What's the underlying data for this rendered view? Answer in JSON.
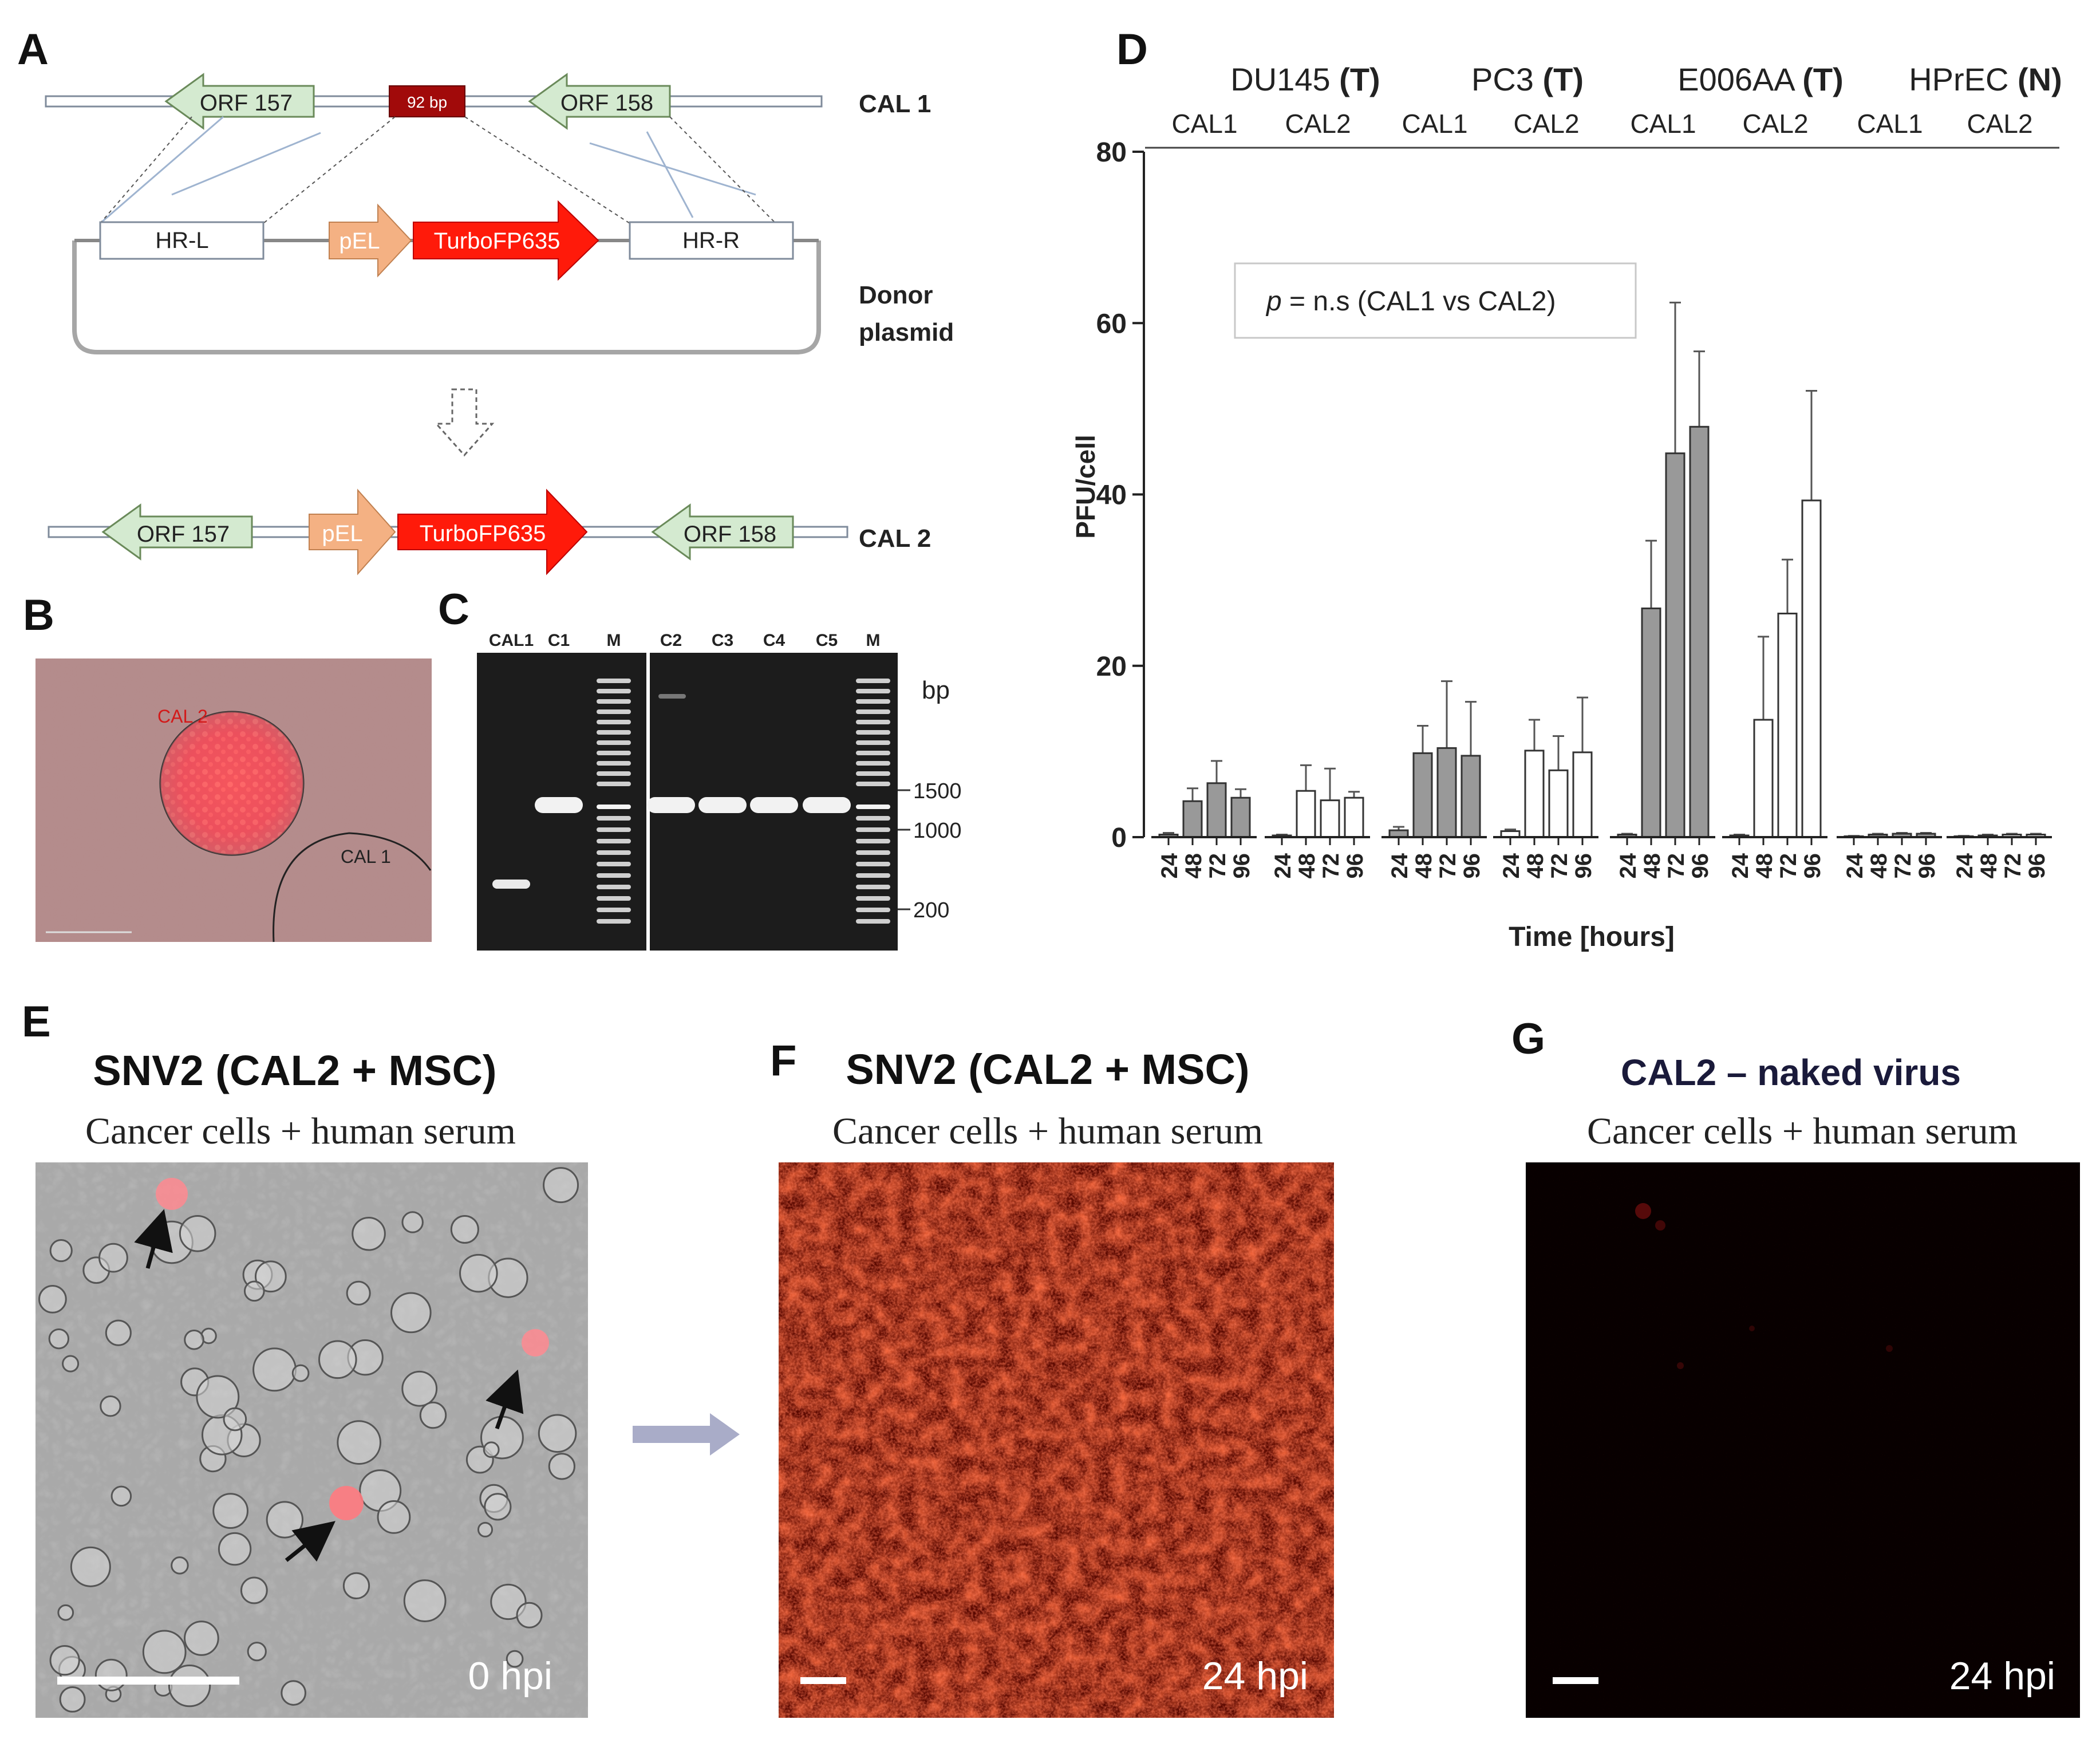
{
  "panels": {
    "A": {
      "letter": "A",
      "top_construct_label": "CAL 1",
      "bottom_construct_label": "CAL 2",
      "orf157": "ORF 157",
      "orf158": "ORF 158",
      "insert_92bp": "92 bp",
      "hr_left": "HR-L",
      "hr_right": "HR-R",
      "promoter": "pEL",
      "reporter": "TurboFP635",
      "donor_label_line1": "Donor",
      "donor_label_line2": "plasmid",
      "colors": {
        "orf_fill": "#d4ead0",
        "promoter_fill": "#f4b183",
        "reporter_fill": "#ff1a0a",
        "insert_fill": "#a10a0a"
      }
    },
    "B": {
      "letter": "B",
      "label_cal2": "CAL 2",
      "label_cal1": "CAL 1"
    },
    "C": {
      "letter": "C",
      "lane_labels": [
        "CAL1",
        "C1",
        "M",
        "C2",
        "C3",
        "C4",
        "C5",
        "M"
      ],
      "bp_label": "bp",
      "marker_labels": [
        "1500",
        "1000",
        "200"
      ]
    },
    "D": {
      "letter": "D",
      "groups": [
        {
          "name": "DU145",
          "tag": "(T)",
          "subs": [
            "CAL1",
            "CAL2"
          ]
        },
        {
          "name": "PC3",
          "tag": "(T)",
          "subs": [
            "CAL1",
            "CAL2"
          ]
        },
        {
          "name": "E006AA",
          "tag": "(T)",
          "subs": [
            "CAL1",
            "CAL2"
          ]
        },
        {
          "name": "HPrEC",
          "tag": "(N)",
          "subs": [
            "CAL1",
            "CAL2"
          ]
        }
      ],
      "stats_prefix": "p",
      "stats_rest": " = n.s (CAL1 vs CAL2)"
    },
    "E": {
      "letter": "E",
      "title": "SNV2 (CAL2 + MSC)",
      "subtitle": "Cancer cells + human serum",
      "timepoint": "0 hpi"
    },
    "F": {
      "letter": "F",
      "title": "SNV2 (CAL2 + MSC)",
      "subtitle": "Cancer cells + human serum",
      "timepoint": "24 hpi"
    },
    "G": {
      "letter": "G",
      "title": "CAL2 – naked virus",
      "subtitle": "Cancer cells + human serum",
      "timepoint": "24 hpi"
    }
  },
  "chart_data": {
    "type": "bar",
    "ylabel": "PFU/cell",
    "xlabel": "Time [hours]",
    "ylim": [
      0,
      80
    ],
    "yticks": [
      0,
      20,
      40,
      60,
      80
    ],
    "x_tick_labels": [
      "24",
      "48",
      "72",
      "96"
    ],
    "grid": false,
    "series_style": {
      "CAL1": "#999999",
      "CAL2": "#ffffff"
    },
    "groups": [
      {
        "cell_line": "DU145",
        "virus": "CAL1",
        "values": [
          0.3,
          4.2,
          6.3,
          4.6
        ],
        "errors": [
          0.2,
          1.5,
          2.6,
          1.0
        ]
      },
      {
        "cell_line": "DU145",
        "virus": "CAL2",
        "values": [
          0.2,
          5.4,
          4.3,
          4.6
        ],
        "errors": [
          0.1,
          3.0,
          3.7,
          0.7
        ]
      },
      {
        "cell_line": "PC3",
        "virus": "CAL1",
        "values": [
          0.8,
          9.8,
          10.4,
          9.5
        ],
        "errors": [
          0.4,
          3.2,
          7.8,
          6.3
        ]
      },
      {
        "cell_line": "PC3",
        "virus": "CAL2",
        "values": [
          0.7,
          10.1,
          7.8,
          9.9
        ],
        "errors": [
          0.2,
          3.6,
          4.0,
          6.4
        ]
      },
      {
        "cell_line": "E006AA",
        "virus": "CAL1",
        "values": [
          0.3,
          26.7,
          44.8,
          47.9
        ],
        "errors": [
          0.1,
          7.9,
          17.6,
          8.8
        ]
      },
      {
        "cell_line": "E006AA",
        "virus": "CAL2",
        "values": [
          0.2,
          13.7,
          26.1,
          39.3
        ],
        "errors": [
          0.1,
          9.7,
          6.3,
          12.8
        ]
      },
      {
        "cell_line": "HPrEC",
        "virus": "CAL1",
        "values": [
          0.1,
          0.3,
          0.4,
          0.4
        ],
        "errors": [
          0.05,
          0.1,
          0.1,
          0.1
        ]
      },
      {
        "cell_line": "HPrEC",
        "virus": "CAL2",
        "values": [
          0.1,
          0.2,
          0.3,
          0.3
        ],
        "errors": [
          0.05,
          0.1,
          0.1,
          0.1
        ]
      }
    ]
  }
}
